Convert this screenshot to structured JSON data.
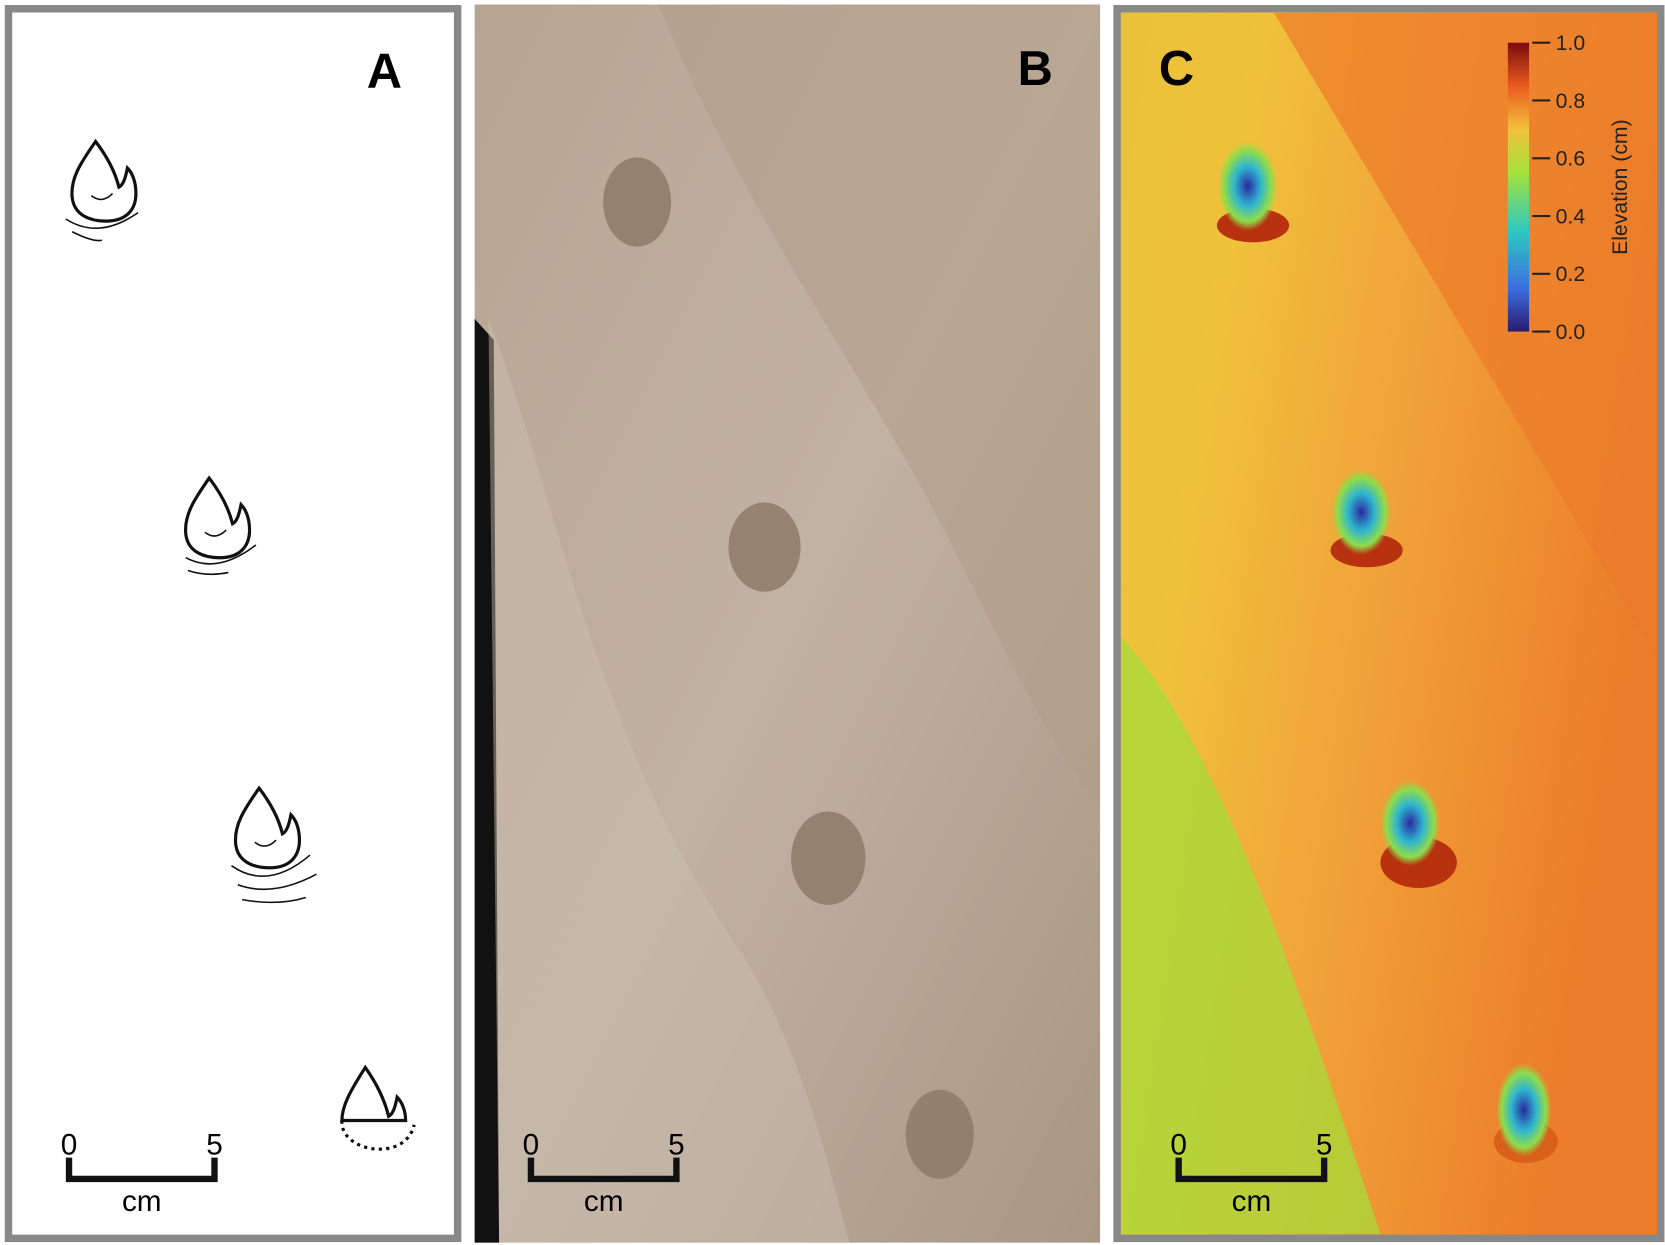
{
  "panels": [
    {
      "label": "A",
      "scale_bar": {
        "start": "0",
        "end": "5",
        "unit": "cm"
      }
    },
    {
      "label": "B",
      "scale_bar": {
        "start": "0",
        "end": "5",
        "unit": "cm"
      }
    },
    {
      "label": "C",
      "scale_bar": {
        "start": "0",
        "end": "5",
        "unit": "cm"
      }
    }
  ],
  "colorbar": {
    "title": "Elevation (cm)",
    "ticks": [
      {
        "value": 0,
        "label": "0.0"
      },
      {
        "value": 0.2,
        "label": "0.2"
      },
      {
        "value": 0.4,
        "label": "0.4"
      },
      {
        "value": 0.6,
        "label": "0.6"
      },
      {
        "value": 0.8,
        "label": "0.8"
      },
      {
        "value": 1,
        "label": "1.0"
      }
    ]
  }
}
